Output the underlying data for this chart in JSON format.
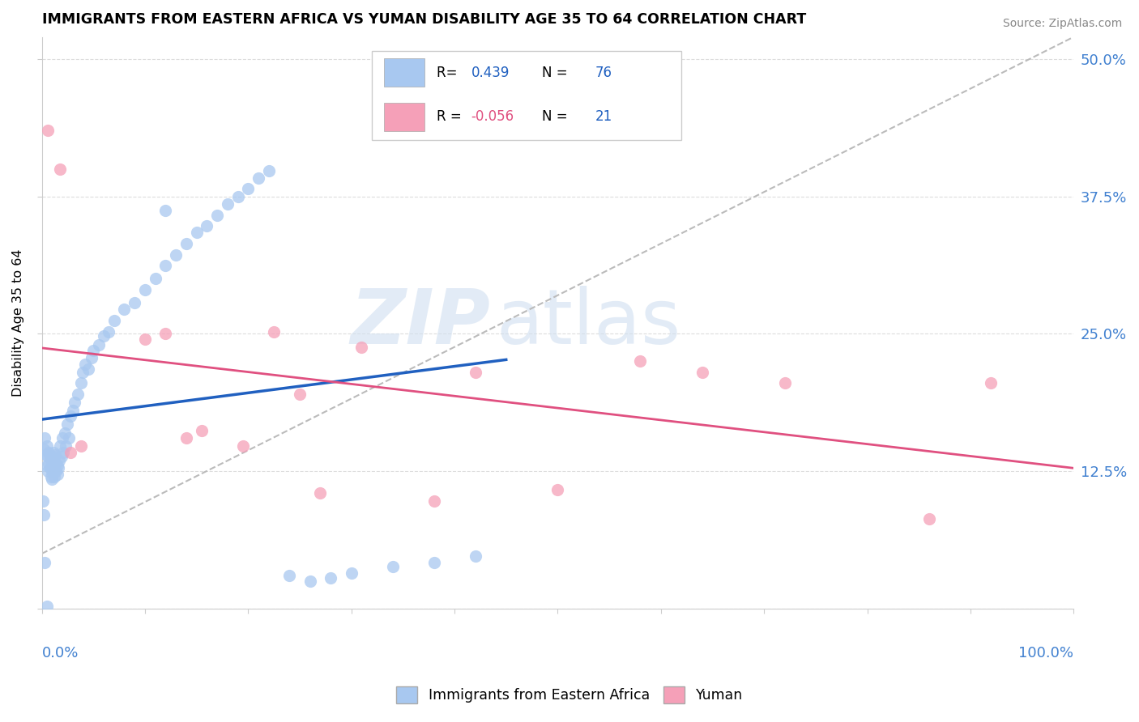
{
  "title": "IMMIGRANTS FROM EASTERN AFRICA VS YUMAN DISABILITY AGE 35 TO 64 CORRELATION CHART",
  "source": "Source: ZipAtlas.com",
  "ylabel": "Disability Age 35 to 64",
  "xlim": [
    0.0,
    1.0
  ],
  "ylim": [
    0.0,
    0.52
  ],
  "x_tick_positions": [
    0.0,
    0.1,
    0.2,
    0.3,
    0.4,
    0.5,
    0.6,
    0.7,
    0.8,
    0.9,
    1.0
  ],
  "y_tick_positions": [
    0.0,
    0.125,
    0.25,
    0.375,
    0.5
  ],
  "y_tick_labels_right": [
    "",
    "12.5%",
    "25.0%",
    "37.5%",
    "50.0%"
  ],
  "R_blue": 0.439,
  "N_blue": 76,
  "R_pink": -0.056,
  "N_pink": 21,
  "blue_scatter_color": "#A8C8F0",
  "pink_scatter_color": "#F5A0B8",
  "blue_line_color": "#2060C0",
  "pink_line_color": "#E05080",
  "dashed_color": "#BBBBBB",
  "right_label_color": "#4080D0",
  "grid_color": "#DDDDDD",
  "legend_label_blue": "Immigrants from Eastern Africa",
  "legend_label_pink": "Yuman",
  "blue_x": [
    0.002,
    0.003,
    0.004,
    0.005,
    0.005,
    0.006,
    0.006,
    0.007,
    0.007,
    0.008,
    0.008,
    0.009,
    0.009,
    0.01,
    0.01,
    0.01,
    0.011,
    0.011,
    0.012,
    0.012,
    0.013,
    0.013,
    0.014,
    0.015,
    0.015,
    0.016,
    0.017,
    0.018,
    0.019,
    0.02,
    0.021,
    0.022,
    0.023,
    0.025,
    0.026,
    0.028,
    0.03,
    0.032,
    0.035,
    0.038,
    0.04,
    0.042,
    0.045,
    0.048,
    0.05,
    0.055,
    0.06,
    0.065,
    0.07,
    0.08,
    0.09,
    0.1,
    0.11,
    0.12,
    0.13,
    0.14,
    0.15,
    0.16,
    0.17,
    0.18,
    0.19,
    0.2,
    0.21,
    0.22,
    0.24,
    0.26,
    0.28,
    0.3,
    0.34,
    0.38,
    0.42,
    0.001,
    0.002,
    0.003,
    0.12,
    0.005
  ],
  "blue_y": [
    0.145,
    0.155,
    0.14,
    0.13,
    0.148,
    0.138,
    0.125,
    0.132,
    0.142,
    0.128,
    0.138,
    0.12,
    0.128,
    0.118,
    0.125,
    0.133,
    0.138,
    0.142,
    0.12,
    0.135,
    0.128,
    0.14,
    0.125,
    0.13,
    0.122,
    0.128,
    0.135,
    0.148,
    0.138,
    0.155,
    0.142,
    0.16,
    0.148,
    0.168,
    0.155,
    0.175,
    0.18,
    0.188,
    0.195,
    0.205,
    0.215,
    0.222,
    0.218,
    0.228,
    0.235,
    0.24,
    0.248,
    0.252,
    0.262,
    0.272,
    0.278,
    0.29,
    0.3,
    0.312,
    0.322,
    0.332,
    0.342,
    0.348,
    0.358,
    0.368,
    0.375,
    0.382,
    0.392,
    0.398,
    0.03,
    0.025,
    0.028,
    0.032,
    0.038,
    0.042,
    0.048,
    0.098,
    0.085,
    0.042,
    0.362,
    0.002
  ],
  "pink_x": [
    0.006,
    0.018,
    0.028,
    0.038,
    0.12,
    0.14,
    0.155,
    0.195,
    0.225,
    0.25,
    0.27,
    0.31,
    0.38,
    0.42,
    0.5,
    0.58,
    0.64,
    0.72,
    0.86,
    0.92,
    0.1
  ],
  "pink_y": [
    0.435,
    0.4,
    0.142,
    0.148,
    0.25,
    0.155,
    0.162,
    0.148,
    0.252,
    0.195,
    0.105,
    0.238,
    0.098,
    0.215,
    0.108,
    0.225,
    0.215,
    0.205,
    0.082,
    0.205,
    0.245
  ]
}
